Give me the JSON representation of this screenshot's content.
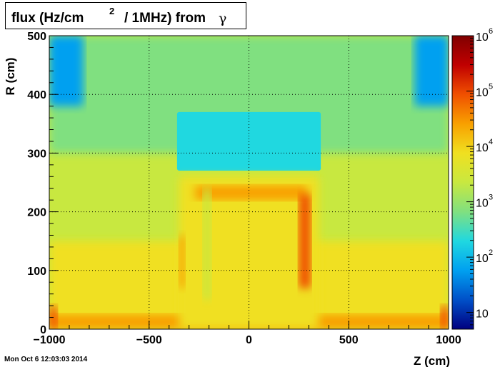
{
  "title": {
    "main": "flux (Hz/cm",
    "superscript": "2",
    "rest": "/ 1MHz) from",
    "symbol": "γ"
  },
  "timestamp": "Mon Oct  6 12:03:03 2014",
  "chart_data": {
    "type": "heatmap",
    "xlabel": "Z (cm)",
    "ylabel": "R (cm)",
    "xlim": [
      -1000,
      1000
    ],
    "ylim": [
      0,
      500
    ],
    "x_ticks": [
      -1000,
      -500,
      0,
      500,
      1000
    ],
    "x_tick_labels": [
      "−1000",
      "−500",
      "0",
      "500",
      "1000"
    ],
    "y_ticks": [
      0,
      100,
      200,
      300,
      400,
      500
    ],
    "y_tick_labels": [
      "0",
      "100",
      "200",
      "300",
      "400",
      "500"
    ],
    "grid": true,
    "colorbar": {
      "scale": "log",
      "range": [
        5,
        1000000
      ],
      "ticks": [
        10,
        100,
        1000,
        10000,
        100000,
        1000000
      ],
      "tick_labels": [
        {
          "base": "10",
          "exp": ""
        },
        {
          "base": "10",
          "exp": "2"
        },
        {
          "base": "10",
          "exp": "3"
        },
        {
          "base": "10",
          "exp": "4"
        },
        {
          "base": "10",
          "exp": "5"
        },
        {
          "base": "10",
          "exp": "6"
        }
      ]
    },
    "colors": [
      "#000080",
      "#0050c8",
      "#00a0f0",
      "#20d8e0",
      "#80e080",
      "#c8e840",
      "#f0e020",
      "#f8a000",
      "#f05000",
      "#c00000",
      "#800000"
    ],
    "regions": [
      {
        "name": "background",
        "value": 1500
      },
      {
        "name": "outer-band",
        "z": [
          -1000,
          1000
        ],
        "r": [
          0,
          150
        ],
        "value": 7000
      },
      {
        "name": "floor-band",
        "z": [
          -1000,
          1000
        ],
        "r": [
          0,
          25
        ],
        "value": 40000
      },
      {
        "name": "upper-sky",
        "z": [
          -1000,
          1000
        ],
        "r": [
          300,
          500
        ],
        "value": 900
      },
      {
        "name": "calorimeter-top",
        "z": [
          -360,
          360
        ],
        "r": [
          270,
          370
        ],
        "value": 250
      },
      {
        "name": "calorimeter-inner",
        "z": [
          -350,
          350
        ],
        "r": [
          0,
          260
        ],
        "value": 8000
      },
      {
        "name": "hot-stripe",
        "z": [
          -270,
          290
        ],
        "r": [
          220,
          245
        ],
        "value": 30000
      },
      {
        "name": "hot-pillar-right",
        "z": [
          250,
          310
        ],
        "r": [
          70,
          230
        ],
        "value": 80000
      },
      {
        "name": "hot-pillar-left",
        "z": [
          -350,
          -320
        ],
        "r": [
          70,
          160
        ],
        "value": 20000
      },
      {
        "name": "cool-pillar",
        "z": [
          -230,
          -190
        ],
        "r": [
          50,
          240
        ],
        "value": 3000
      },
      {
        "name": "corner-left",
        "z": [
          -1000,
          -830
        ],
        "r": [
          380,
          500
        ],
        "value": 80
      },
      {
        "name": "corner-right",
        "z": [
          830,
          1000
        ],
        "r": [
          380,
          500
        ],
        "value": 80
      },
      {
        "name": "hot-corner-left",
        "z": [
          -1000,
          -960
        ],
        "r": [
          0,
          40
        ],
        "value": 150000
      },
      {
        "name": "hot-corner-right",
        "z": [
          960,
          1000
        ],
        "r": [
          0,
          40
        ],
        "value": 150000
      }
    ]
  }
}
